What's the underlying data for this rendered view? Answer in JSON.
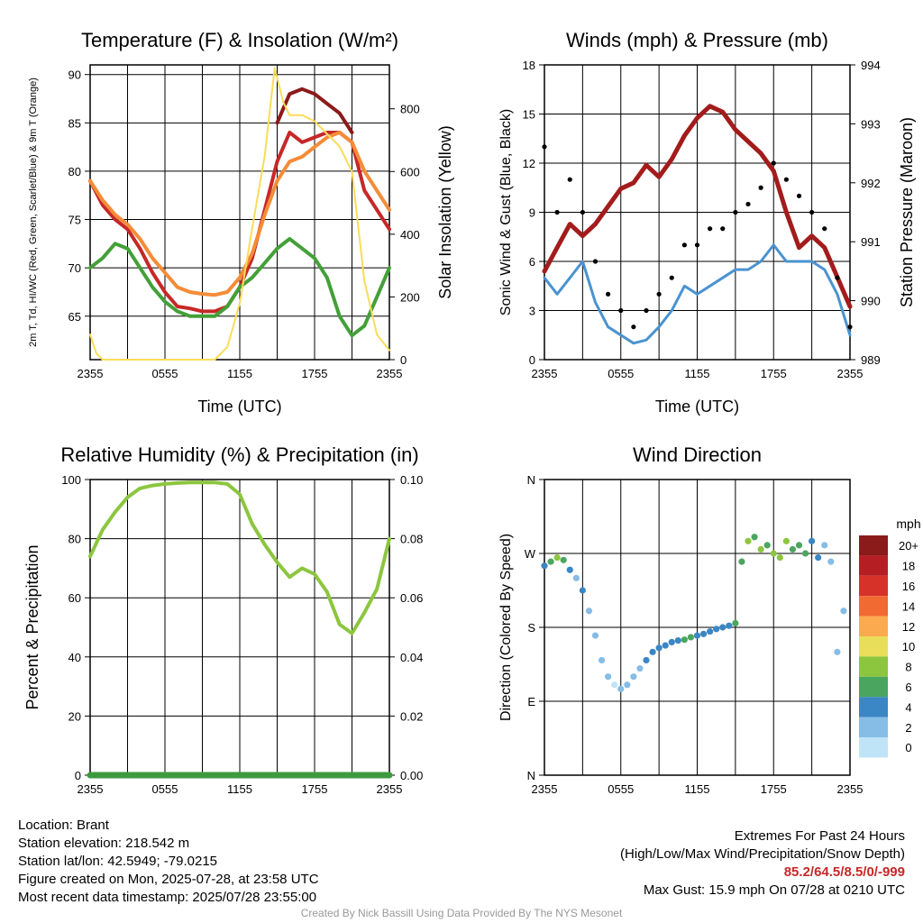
{
  "chart_data": [
    {
      "type": "line",
      "title": "Temperature (F) & Insolation (W/m²)",
      "xlabel": "Time (UTC)",
      "ylabel_left": "2m T, Td, HI/WC (Red, Green, Scarlet/Blue) & 9m T (Orange)",
      "ylabel_right": "Solar Insolation (Yellow)",
      "x_ticks": [
        "2355",
        "0555",
        "1155",
        "1755",
        "2355"
      ],
      "x_range_hours": [
        0,
        24
      ],
      "ylim_left": [
        60.5,
        91
      ],
      "ylim_right": [
        0,
        940
      ],
      "y_ticks_left": [
        65,
        70,
        75,
        80,
        85,
        90
      ],
      "y_ticks_right": [
        0,
        200,
        400,
        600,
        800
      ],
      "series": [
        {
          "name": "Temperature",
          "color": "#c62828",
          "x": [
            0,
            1,
            2,
            3,
            4,
            5,
            6,
            7,
            8,
            9,
            10,
            11,
            12,
            13,
            14,
            15,
            16,
            17,
            18,
            19,
            20,
            21,
            22,
            23,
            24
          ],
          "values": [
            79,
            76.5,
            75,
            74,
            72,
            69.5,
            67.5,
            66,
            65.8,
            65.5,
            65.5,
            66,
            68,
            71,
            76,
            81,
            84,
            83,
            83.5,
            84,
            84,
            83,
            78,
            76,
            74
          ]
        },
        {
          "name": "Dew Point",
          "color": "#43a038",
          "x": [
            0,
            1,
            2,
            3,
            4,
            5,
            6,
            7,
            8,
            9,
            10,
            11,
            12,
            13,
            14,
            15,
            16,
            17,
            18,
            19,
            20,
            21,
            22,
            23,
            24
          ],
          "values": [
            70,
            71,
            72.5,
            72,
            70,
            68,
            66.5,
            65.5,
            65,
            65,
            65,
            66,
            68,
            69,
            70.5,
            72,
            73,
            72,
            71,
            69,
            65,
            63,
            64,
            67,
            70
          ]
        },
        {
          "name": "Heat Index / Wind Chill",
          "color": "#8b1a1a",
          "x": [
            15,
            16,
            17,
            18,
            19,
            20,
            21
          ],
          "values": [
            85,
            88,
            88.5,
            88,
            87,
            86,
            84
          ]
        },
        {
          "name": "9m Temperature",
          "color": "#f48c38",
          "x": [
            0,
            1,
            2,
            3,
            4,
            5,
            6,
            7,
            8,
            9,
            10,
            11,
            12,
            13,
            14,
            15,
            16,
            17,
            18,
            19,
            20,
            21,
            22,
            23,
            24
          ],
          "values": [
            79,
            77,
            75.5,
            74.5,
            73,
            71,
            69.5,
            68,
            67.5,
            67.3,
            67.2,
            67.5,
            69,
            71.5,
            75.5,
            79,
            81,
            81.5,
            82.5,
            83.5,
            84,
            83,
            80,
            78,
            76
          ]
        },
        {
          "name": "Solar Insolation",
          "color": "#fadc5a",
          "axis": "right",
          "x": [
            0,
            0.5,
            1,
            5,
            10,
            11,
            12,
            13,
            14,
            14.8,
            15.5,
            16,
            17,
            18,
            19,
            20,
            21,
            22,
            23,
            24
          ],
          "values": [
            80,
            20,
            0,
            0,
            0,
            40,
            180,
            420,
            650,
            930,
            820,
            780,
            780,
            760,
            720,
            680,
            600,
            250,
            80,
            30
          ]
        }
      ]
    },
    {
      "type": "line",
      "title": "Winds (mph) & Pressure (mb)",
      "xlabel": "Time (UTC)",
      "ylabel_left": "Sonic Wind & Gust (Blue, Black)",
      "ylabel_right": "Station Pressure (Maroon)",
      "x_ticks": [
        "2355",
        "0555",
        "1155",
        "1755",
        "2355"
      ],
      "x_range_hours": [
        0,
        24
      ],
      "ylim_left": [
        0,
        18
      ],
      "ylim_right": [
        989,
        994
      ],
      "y_ticks_left": [
        0,
        3,
        6,
        9,
        12,
        15,
        18
      ],
      "y_ticks_right": [
        989,
        990,
        991,
        992,
        993,
        994
      ],
      "series": [
        {
          "name": "Pressure",
          "color": "#a31c1c",
          "axis": "right",
          "x": [
            0,
            1,
            2,
            3,
            4,
            5,
            6,
            7,
            8,
            9,
            10,
            11,
            12,
            13,
            14,
            15,
            16,
            17,
            18,
            19,
            20,
            21,
            22,
            23,
            24
          ],
          "values": [
            990.5,
            990.9,
            991.3,
            991.1,
            991.3,
            991.6,
            991.9,
            992.0,
            992.3,
            992.1,
            992.4,
            992.8,
            993.1,
            993.3,
            993.2,
            992.9,
            992.7,
            992.5,
            992.2,
            991.5,
            990.9,
            991.1,
            990.9,
            990.4,
            989.9
          ]
        },
        {
          "name": "Wind",
          "color": "#4a93d0",
          "x": [
            0,
            1,
            2,
            3,
            4,
            5,
            6,
            7,
            8,
            9,
            10,
            11,
            12,
            13,
            14,
            15,
            16,
            17,
            18,
            19,
            20,
            21,
            22,
            23,
            24
          ],
          "values": [
            5,
            4,
            5,
            6,
            3.5,
            2,
            1.5,
            1,
            1.2,
            2,
            3,
            4.5,
            4,
            4.5,
            5,
            5.5,
            5.5,
            6,
            7,
            6,
            6,
            6,
            5.5,
            4,
            1.5
          ]
        },
        {
          "name": "Gust",
          "color": "#000000",
          "markers": true,
          "x": [
            0,
            1,
            2,
            3,
            4,
            5,
            6,
            7,
            8,
            9,
            10,
            11,
            12,
            13,
            14,
            15,
            16,
            17,
            18,
            19,
            20,
            21,
            22,
            23,
            24
          ],
          "values": [
            13,
            9,
            11,
            9,
            6,
            4,
            3,
            2,
            3,
            4,
            5,
            7,
            7,
            8,
            8,
            9,
            9.5,
            10.5,
            12,
            11,
            10,
            9,
            8,
            5,
            2
          ]
        }
      ]
    },
    {
      "type": "line",
      "title": "Relative Humidity (%) & Precipitation (in)",
      "xlabel": "",
      "ylabel_left": "Percent & Precipitation",
      "x_ticks": [
        "2355",
        "0555",
        "1155",
        "1755",
        "2355"
      ],
      "x_range_hours": [
        0,
        24
      ],
      "ylim_left": [
        0,
        100
      ],
      "ylim_right": [
        0,
        0.1
      ],
      "y_ticks_left": [
        0,
        20,
        40,
        60,
        80,
        100
      ],
      "y_ticks_right": [
        "0.00",
        "0.02",
        "0.04",
        "0.06",
        "0.08",
        "0.10"
      ],
      "series": [
        {
          "name": "Relative Humidity",
          "color": "#8cc63f",
          "x": [
            0,
            1,
            2,
            3,
            4,
            5,
            6,
            7,
            8,
            9,
            10,
            11,
            12,
            13,
            14,
            15,
            16,
            17,
            18,
            19,
            20,
            21,
            22,
            23,
            24
          ],
          "values": [
            74,
            83,
            89,
            94,
            97,
            98,
            98.5,
            98.8,
            99,
            99,
            99,
            98.5,
            95,
            85,
            78,
            72,
            67,
            70,
            68,
            62,
            51,
            48,
            55,
            63,
            80
          ]
        },
        {
          "name": "Precipitation",
          "color": "#3e9a3e",
          "axis": "right",
          "x": [
            0,
            24
          ],
          "values": [
            0,
            0
          ]
        }
      ]
    },
    {
      "type": "scatter",
      "title": "Wind Direction",
      "ylabel": "Direction (Colored By Speed)",
      "x_ticks": [
        "2355",
        "0555",
        "1155",
        "1755",
        "2355"
      ],
      "x_range_hours": [
        0,
        24
      ],
      "ylim_deg": [
        0,
        360
      ],
      "y_ticks": [
        "N",
        "E",
        "S",
        "W",
        "N"
      ],
      "legend_title": "mph",
      "legend_labels": [
        "0",
        "2",
        "4",
        "6",
        "8",
        "10",
        "12",
        "14",
        "16",
        "18",
        "20+"
      ],
      "legend_colors": [
        "#bfe4f8",
        "#86bde6",
        "#3b86c4",
        "#4aa65e",
        "#8cc63f",
        "#e8de5a",
        "#fbaa50",
        "#f06a32",
        "#d7322a",
        "#b51e22",
        "#8b1a1a"
      ],
      "points_hours": [
        0,
        0.5,
        1,
        1.5,
        2,
        2.5,
        3,
        3.5,
        4,
        4.5,
        5,
        5.5,
        6,
        6.5,
        7,
        7.5,
        8,
        8.5,
        9,
        9.5,
        10,
        10.5,
        11,
        11.5,
        12,
        12.5,
        13,
        13.5,
        14,
        14.5,
        15,
        15.5,
        16,
        16.5,
        17,
        17.5,
        18,
        18.5,
        19,
        19.5,
        20,
        20.5,
        21,
        21.5,
        22,
        22.5,
        23,
        23.5
      ],
      "points_deg": [
        255,
        260,
        265,
        262,
        250,
        240,
        225,
        200,
        170,
        140,
        120,
        110,
        105,
        110,
        120,
        130,
        140,
        150,
        155,
        158,
        162,
        164,
        165,
        168,
        170,
        172,
        175,
        178,
        180,
        182,
        185,
        260,
        285,
        290,
        275,
        280,
        270,
        265,
        285,
        275,
        280,
        270,
        285,
        265,
        280,
        260,
        150,
        200
      ],
      "points_speed": [
        4,
        6,
        7,
        5,
        3,
        2,
        3,
        2,
        1,
        1,
        1,
        0,
        1,
        1,
        2,
        2,
        3,
        3,
        3,
        4,
        4,
        4,
        5,
        5,
        4,
        4,
        4,
        4,
        3,
        4,
        5,
        5,
        7,
        6,
        7,
        6,
        7,
        8,
        7,
        6,
        5,
        5,
        4,
        3,
        2,
        2,
        2,
        1
      ]
    }
  ],
  "info_left": {
    "location": "Location: Brant",
    "elevation": "Station elevation: 218.542 m",
    "latlon": "Station lat/lon: 42.5949; -79.0215",
    "created": "Figure created on Mon, 2025-07-28, at 23:58 UTC",
    "recent": "Most recent data timestamp: 2025/07/28 23:55:00"
  },
  "info_right": {
    "title": "Extremes For Past 24 Hours",
    "subtitle": "(High/Low/Max Wind/Precipitation/Snow Depth)",
    "values": "85.2/64.5/8.5/0/-999",
    "gust": "Max Gust: 15.9 mph On 07/28 at 0210 UTC"
  },
  "credit": "Created By Nick Bassill Using Data Provided By The NYS Mesonet"
}
